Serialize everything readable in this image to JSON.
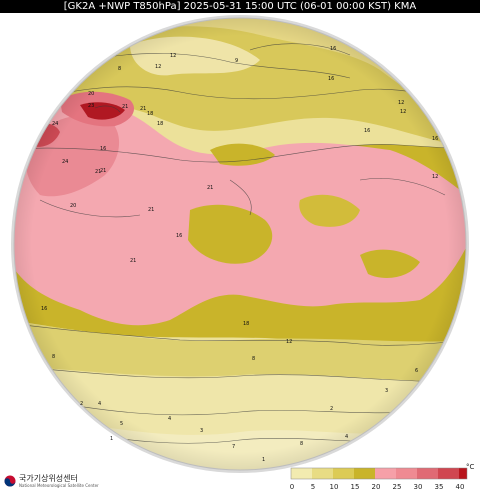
{
  "title": "[GK2A +NWP T850hPa] 2025-05-31 15:00 UTC (06-01 00:00 KST) KMA",
  "logo": {
    "name": "국가기상위성센터",
    "subtitle": "National Meteorological Satellite Center"
  },
  "legend": {
    "unit": "°C",
    "ticks": [
      "0",
      "5",
      "10",
      "15",
      "20",
      "25",
      "30",
      "35",
      "40"
    ],
    "colors": [
      "#f2ebb0",
      "#e8dc84",
      "#dccb55",
      "#c9b42a",
      "#f6a0a8",
      "#ef8a92",
      "#e06a74",
      "#d04650",
      "#b8141c"
    ]
  },
  "contour_labels": [
    "12",
    "8",
    "9",
    "16",
    "16",
    "12",
    "16",
    "12",
    "18",
    "20",
    "23",
    "21",
    "18",
    "21",
    "24",
    "21",
    "16",
    "24",
    "21",
    "20",
    "21",
    "21",
    "21",
    "16",
    "18",
    "12",
    "8",
    "12",
    "16",
    "16",
    "12",
    "8",
    "4",
    "5",
    "2",
    "1",
    "4",
    "3",
    "7",
    "8",
    "1",
    "4",
    "2",
    "3",
    "6"
  ],
  "colors": {
    "background": "#ffffff",
    "space": "#ffffff",
    "disk_edge": "#c8c8c8",
    "band_cool": "#efe5a0",
    "band_mild": "#ddd070",
    "band_warm": "#c9b42a",
    "band_hot": "#f3a6ae",
    "band_hotter": "#e47a84",
    "band_max": "#b01822"
  }
}
